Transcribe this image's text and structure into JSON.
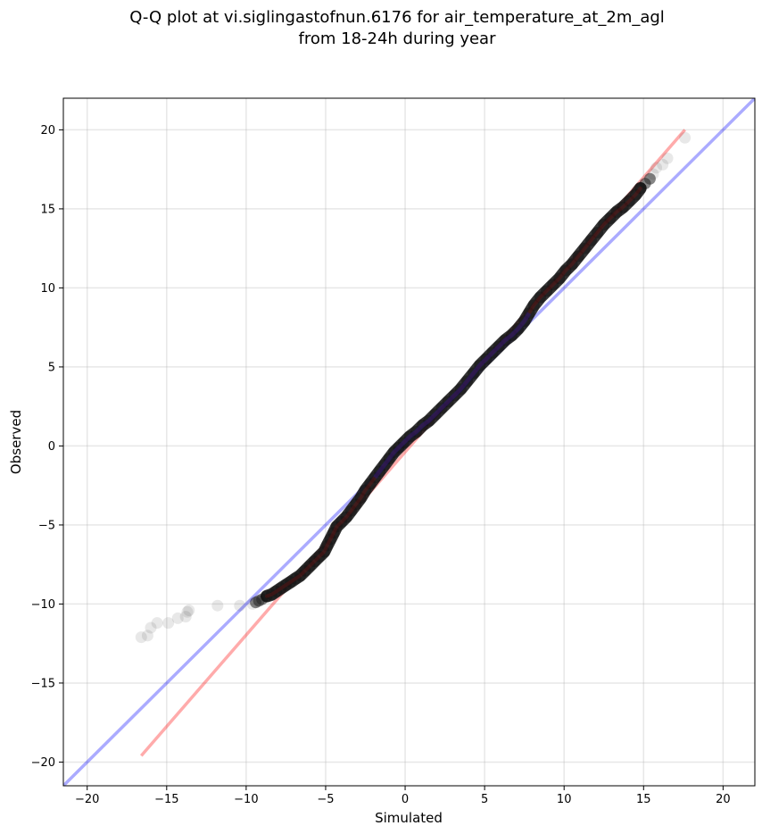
{
  "title": {
    "line1": "Q-Q plot at vi.siglingastofnun.6176 for air_temperature_at_2m_agl",
    "line2": "from 18-24h during year"
  },
  "chart_data": {
    "type": "scatter",
    "xlabel": "Simulated",
    "ylabel": "Observed",
    "xlim": [
      -21.5,
      22
    ],
    "ylim": [
      -21.5,
      22
    ],
    "xticks": [
      -20,
      -15,
      -10,
      -5,
      0,
      5,
      10,
      15,
      20
    ],
    "yticks": [
      -20,
      -15,
      -10,
      -5,
      0,
      5,
      10,
      15,
      20
    ],
    "xtick_labels": [
      "−20",
      "−15",
      "−10",
      "−5",
      "0",
      "5",
      "10",
      "15",
      "20"
    ],
    "ytick_labels": [
      "−20",
      "−15",
      "−10",
      "−5",
      "0",
      "5",
      "10",
      "15",
      "20"
    ],
    "grid": true,
    "colors": {
      "points": "#222222",
      "identity_line": "#0000ff",
      "fit_line": "#ff0000",
      "dense_blue": "#1a1a8c",
      "dense_red": "#7a1010"
    },
    "identity_line": {
      "x": [
        -21.5,
        22
      ],
      "y": [
        -21.5,
        22
      ]
    },
    "fit_line": {
      "x": [
        -16.6,
        17.6
      ],
      "y": [
        -19.6,
        20.0
      ]
    },
    "series": [
      {
        "points": [
          [
            -16.6,
            -12.1
          ],
          [
            -16.2,
            -12.0
          ],
          [
            -16.0,
            -11.5
          ],
          [
            -15.6,
            -11.2
          ],
          [
            -14.9,
            -11.2
          ],
          [
            -14.3,
            -10.9
          ],
          [
            -13.8,
            -10.8
          ],
          [
            -13.7,
            -10.5
          ],
          [
            -13.6,
            -10.4
          ],
          [
            -11.8,
            -10.1
          ],
          [
            -10.4,
            -10.1
          ],
          [
            -9.6,
            -10.0
          ],
          [
            -9.4,
            -9.9
          ],
          [
            -9.2,
            -9.8
          ],
          [
            -9.0,
            -9.7
          ],
          [
            -8.7,
            -9.5
          ],
          [
            -8.4,
            -9.4
          ],
          [
            -8.1,
            -9.2
          ],
          [
            -7.8,
            -9.0
          ],
          [
            -7.5,
            -8.8
          ],
          [
            -7.2,
            -8.6
          ],
          [
            -6.9,
            -8.4
          ],
          [
            -6.6,
            -8.2
          ],
          [
            -6.3,
            -7.9
          ],
          [
            -6.0,
            -7.6
          ],
          [
            -5.7,
            -7.3
          ],
          [
            -5.4,
            -7.0
          ],
          [
            -5.1,
            -6.7
          ],
          [
            -4.9,
            -6.3
          ],
          [
            -4.7,
            -5.9
          ],
          [
            -4.5,
            -5.5
          ],
          [
            -4.3,
            -5.1
          ],
          [
            -4.0,
            -4.8
          ],
          [
            -3.7,
            -4.5
          ],
          [
            -3.4,
            -4.1
          ],
          [
            -3.1,
            -3.7
          ],
          [
            -2.8,
            -3.3
          ],
          [
            -2.5,
            -2.8
          ],
          [
            -2.2,
            -2.4
          ],
          [
            -1.9,
            -2.0
          ],
          [
            -1.6,
            -1.6
          ],
          [
            -1.3,
            -1.2
          ],
          [
            -1.0,
            -0.8
          ],
          [
            -0.7,
            -0.4
          ],
          [
            -0.4,
            -0.1
          ],
          [
            -0.1,
            0.2
          ],
          [
            0.3,
            0.6
          ],
          [
            0.7,
            0.9
          ],
          [
            1.1,
            1.3
          ],
          [
            1.5,
            1.6
          ],
          [
            1.9,
            2.0
          ],
          [
            2.3,
            2.4
          ],
          [
            2.7,
            2.8
          ],
          [
            3.1,
            3.2
          ],
          [
            3.5,
            3.6
          ],
          [
            3.9,
            4.1
          ],
          [
            4.3,
            4.6
          ],
          [
            4.7,
            5.1
          ],
          [
            5.1,
            5.5
          ],
          [
            5.5,
            5.9
          ],
          [
            5.9,
            6.3
          ],
          [
            6.3,
            6.7
          ],
          [
            6.7,
            7.0
          ],
          [
            7.1,
            7.4
          ],
          [
            7.5,
            7.9
          ],
          [
            7.8,
            8.4
          ],
          [
            8.1,
            8.9
          ],
          [
            8.5,
            9.4
          ],
          [
            8.9,
            9.8
          ],
          [
            9.3,
            10.2
          ],
          [
            9.7,
            10.6
          ],
          [
            10.1,
            11.1
          ],
          [
            10.5,
            11.5
          ],
          [
            10.9,
            12.0
          ],
          [
            11.3,
            12.5
          ],
          [
            11.7,
            13.0
          ],
          [
            12.1,
            13.5
          ],
          [
            12.5,
            14.0
          ],
          [
            12.9,
            14.4
          ],
          [
            13.3,
            14.8
          ],
          [
            13.7,
            15.1
          ],
          [
            14.1,
            15.5
          ],
          [
            14.5,
            15.9
          ],
          [
            14.8,
            16.3
          ],
          [
            15.1,
            16.6
          ],
          [
            15.4,
            16.9
          ],
          [
            15.6,
            17.2
          ],
          [
            15.8,
            17.6
          ],
          [
            16.2,
            17.8
          ],
          [
            16.5,
            18.2
          ],
          [
            17.6,
            19.5
          ]
        ]
      }
    ]
  }
}
